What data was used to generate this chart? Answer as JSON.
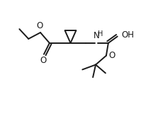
{
  "bg_color": "#ffffff",
  "line_color": "#1a1a1a",
  "line_width": 1.4,
  "font_size": 8.5,
  "canvas_xlim": [
    0,
    10
  ],
  "canvas_ylim": [
    1.5,
    9.0
  ]
}
